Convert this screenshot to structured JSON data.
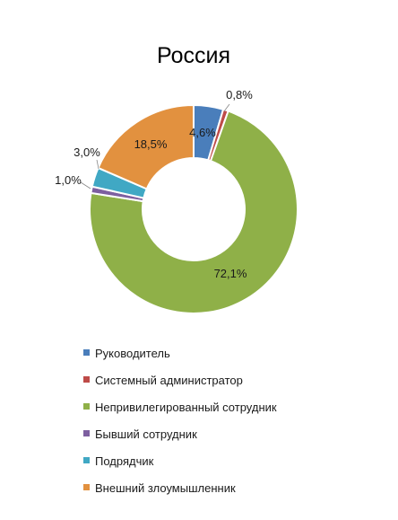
{
  "chart_data": {
    "type": "pie",
    "variant": "donut",
    "title": "Россия",
    "slices": [
      {
        "label": "Руководитель",
        "value": 4.6,
        "display": "4,6%",
        "color": "#4a7ebb"
      },
      {
        "label": "Системный администратор",
        "value": 0.8,
        "display": "0,8%",
        "color": "#be4b48"
      },
      {
        "label": "Непривилегированный сотрудник",
        "value": 72.1,
        "display": "72,1%",
        "color": "#8fb048"
      },
      {
        "label": "Бывший сотрудник",
        "value": 1.0,
        "display": "1,0%",
        "color": "#7d5fa0"
      },
      {
        "label": "Подрядчик",
        "value": 3.0,
        "display": "3,0%",
        "color": "#40a8c4"
      },
      {
        "label": "Внешний злоумышленник",
        "value": 18.5,
        "display": "18,5%",
        "color": "#e2913f"
      }
    ],
    "legend_position": "bottom"
  }
}
